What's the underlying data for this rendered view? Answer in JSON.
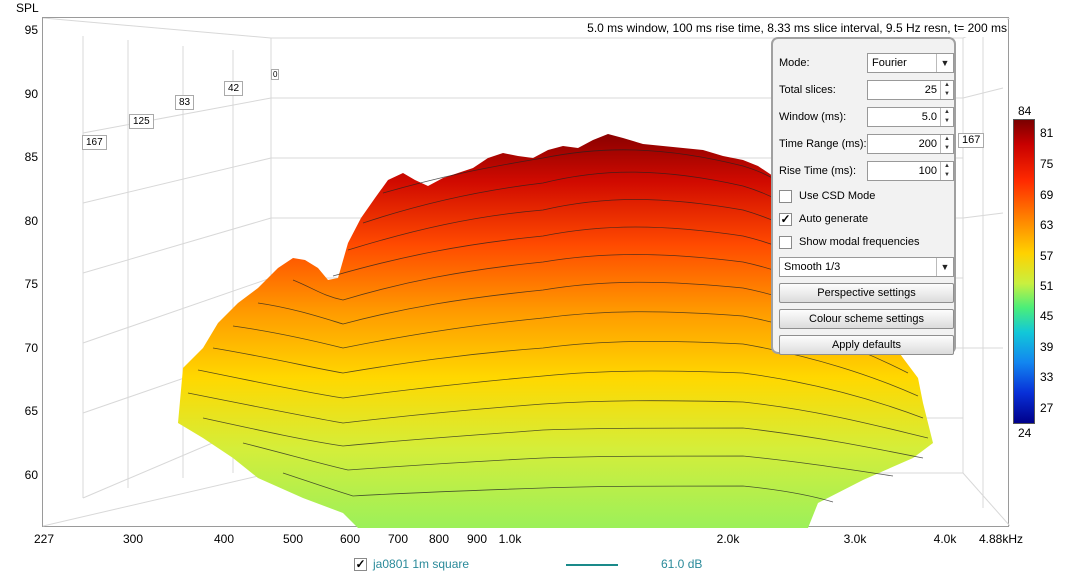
{
  "y_axis": {
    "title": "SPL",
    "ticks": [
      "95",
      "90",
      "85",
      "80",
      "75",
      "70",
      "65",
      "60"
    ]
  },
  "x_axis": {
    "ticks": [
      "227",
      "300",
      "400",
      "500",
      "600",
      "700",
      "800",
      "900",
      "1.0k",
      "2.0k",
      "3.0k",
      "4.0k",
      "4.88kHz"
    ]
  },
  "info_text": "5.0 ms window, 100 ms rise time, 8.33 ms slice interval, 9.5 Hz resn, t= 200 ms",
  "slice_markers": [
    "167",
    "125",
    "83",
    "42",
    "0",
    "167"
  ],
  "panel": {
    "mode_label": "Mode:",
    "mode_value": "Fourier",
    "total_slices_label": "Total slices:",
    "total_slices_value": "25",
    "window_label": "Window (ms):",
    "window_value": "5.0",
    "time_range_label": "Time Range (ms):",
    "time_range_value": "200",
    "rise_time_label": "Rise Time (ms):",
    "rise_time_value": "100",
    "csd_label": "Use CSD Mode",
    "csd_checked": false,
    "auto_label": "Auto generate",
    "auto_checked": true,
    "modal_label": "Show modal frequencies",
    "modal_checked": false,
    "smoothing_value": "Smooth 1/3",
    "perspective_button": "Perspective settings",
    "colour_button": "Colour scheme settings",
    "defaults_button": "Apply defaults"
  },
  "colorbar": {
    "top": "84",
    "bottom": "24",
    "ticks": [
      "81",
      "75",
      "69",
      "63",
      "57",
      "51",
      "45",
      "39",
      "33",
      "27"
    ]
  },
  "legend": {
    "name": "ja0801 1m square",
    "checked": true,
    "value": "61.0 dB",
    "line_color": "#1a8a8a"
  }
}
